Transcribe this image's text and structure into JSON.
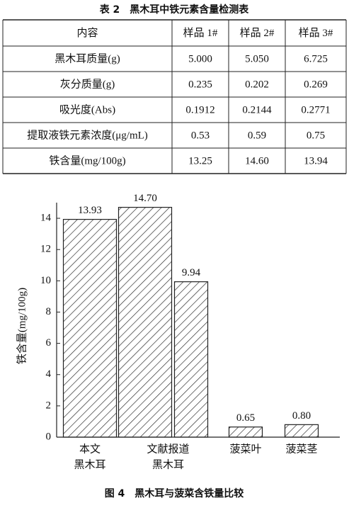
{
  "table": {
    "title": "表 2　黑木耳中铁元素含量检测表",
    "header": [
      "内容",
      "样品 1#",
      "样品 2#",
      "样品 3#"
    ],
    "rows": [
      [
        "黑木耳质量(g)",
        "5.000",
        "5.050",
        "6.725"
      ],
      [
        "灰分质量(g)",
        "0.235",
        "0.202",
        "0.269"
      ],
      [
        "吸光度(Abs)",
        "0.1912",
        "0.2144",
        "0.2771"
      ],
      [
        "提取液铁元素浓度(μg/mL)",
        "0.53",
        "0.59",
        "0.75"
      ],
      [
        "铁含量(mg/100g)",
        "13.25",
        "14.60",
        "13.94"
      ]
    ]
  },
  "chart_data": {
    "type": "bar",
    "title": "图 4　黑木耳与菠菜含铁量比较",
    "y_label": "铁含量(mg/100g)",
    "categories": [
      [
        "本文",
        "黑木耳"
      ],
      [
        "文献报道",
        "黑木耳"
      ],
      null,
      [
        "菠菜叶"
      ],
      [
        "菠菜茎"
      ]
    ],
    "values": [
      13.93,
      14.7,
      9.94,
      0.65,
      0.8
    ],
    "value_labels": [
      "13.93",
      "14.70",
      "9.94",
      "0.65",
      "0.80"
    ],
    "ylim": [
      0,
      15
    ],
    "yticks": [
      0,
      2,
      4,
      6,
      8,
      10,
      12,
      14
    ],
    "hatch": true,
    "color": "#222222"
  }
}
